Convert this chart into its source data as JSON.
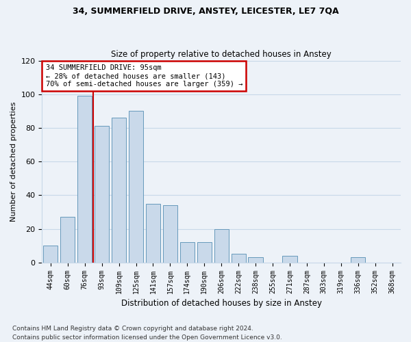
{
  "title1": "34, SUMMERFIELD DRIVE, ANSTEY, LEICESTER, LE7 7QA",
  "title2": "Size of property relative to detached houses in Anstey",
  "xlabel": "Distribution of detached houses by size in Anstey",
  "ylabel": "Number of detached properties",
  "footnote1": "Contains HM Land Registry data © Crown copyright and database right 2024.",
  "footnote2": "Contains public sector information licensed under the Open Government Licence v3.0.",
  "bar_labels": [
    "44sqm",
    "60sqm",
    "76sqm",
    "93sqm",
    "109sqm",
    "125sqm",
    "141sqm",
    "157sqm",
    "174sqm",
    "190sqm",
    "206sqm",
    "222sqm",
    "238sqm",
    "255sqm",
    "271sqm",
    "287sqm",
    "303sqm",
    "319sqm",
    "336sqm",
    "352sqm",
    "368sqm"
  ],
  "bar_values": [
    10,
    27,
    99,
    81,
    86,
    90,
    35,
    34,
    12,
    12,
    20,
    5,
    3,
    0,
    4,
    0,
    0,
    0,
    3,
    0,
    0
  ],
  "bar_color": "#c9d9ea",
  "bar_edge_color": "#6699bb",
  "vline_x_bar_index": 2.5,
  "property_line_label": "34 SUMMERFIELD DRIVE: 95sqm",
  "annotation_line2": "← 28% of detached houses are smaller (143)",
  "annotation_line3": "70% of semi-detached houses are larger (359) →",
  "annotation_box_color": "#cc0000",
  "vline_color": "#cc0000",
  "ylim": [
    0,
    120
  ],
  "yticks": [
    0,
    20,
    40,
    60,
    80,
    100,
    120
  ],
  "grid_color": "#c8d8e8",
  "bg_color": "#edf2f8"
}
